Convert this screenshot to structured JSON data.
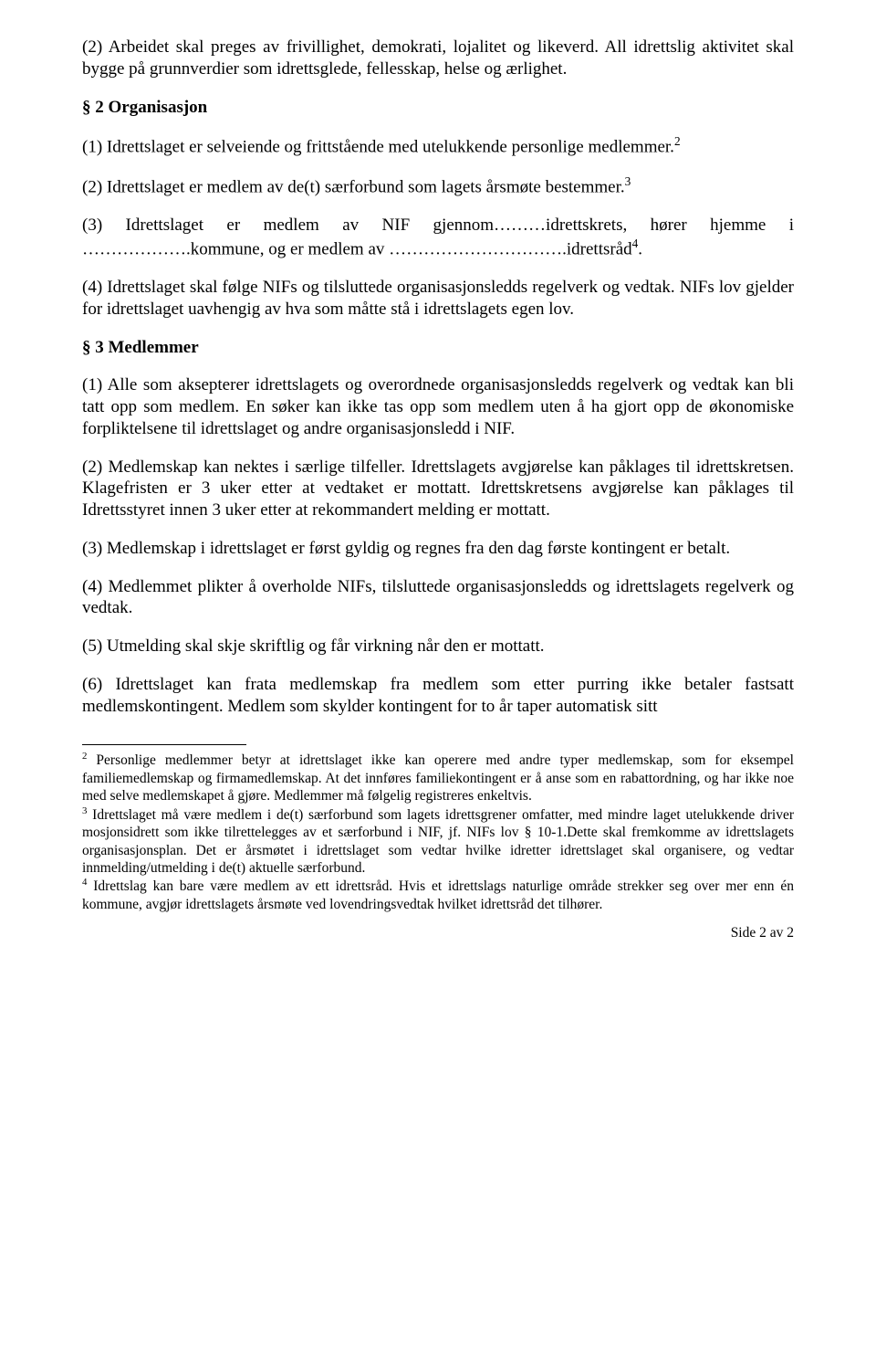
{
  "p1": "(2) Arbeidet skal preges av frivillighet, demokrati, lojalitet og likeverd. All idrettslig aktivitet skal bygge på grunnverdier som idrettsglede, fellesskap, helse og ærlighet.",
  "h1": "§ 2 Organisasjon",
  "p2a": "(1) Idrettslaget er selveiende og frittstående med utelukkende personlige medlemmer.",
  "p2b": "(2) Idrettslaget er medlem av de(t) særforbund som lagets årsmøte bestemmer.",
  "p2c_a": "(3)  Idrettslaget  er  medlem  av  NIF  gjennom………idrettskrets,  hører  hjemme  i ……………….kommune, og er medlem av ………………………….idrettsråd",
  "p2c_b": ".",
  "p2d": "(4) Idrettslaget skal følge NIFs og tilsluttede organisasjonsledds regelverk og vedtak. NIFs lov gjelder for idrettslaget uavhengig av hva som måtte stå i idrettslagets egen lov.",
  "h2": "§ 3 Medlemmer",
  "p3a": "(1) Alle som aksepterer idrettslagets og overordnede organisasjonsledds regelverk og vedtak kan bli tatt opp som medlem. En søker kan ikke tas opp som medlem uten å ha gjort opp de økonomiske forpliktelsene til idrettslaget og andre organisasjonsledd i NIF.",
  "p3b": "(2) Medlemskap kan nektes i særlige tilfeller. Idrettslagets avgjørelse kan påklages til idrettskretsen. Klagefristen er 3 uker etter at vedtaket er mottatt. Idrettskretsens avgjørelse kan påklages til Idrettsstyret innen 3 uker etter at rekommandert melding er mottatt.",
  "p3c": "(3) Medlemskap i idrettslaget er først gyldig og regnes fra den dag første kontingent er betalt.",
  "p3d": "(4) Medlemmet plikter å overholde NIFs, tilsluttede organisasjonsledds og idrettslagets regelverk og vedtak.",
  "p3e": "(5) Utmelding skal skje skriftlig og får virkning når den er mottatt.",
  "p3f": "(6) Idrettslaget kan frata medlemskap fra medlem som etter purring ikke betaler fastsatt medlemskontingent. Medlem som skylder kontingent for to år taper automatisk sitt",
  "fn2": " Personlige medlemmer betyr at idrettslaget ikke kan operere med andre typer medlemskap, som for eksempel familiemedlemskap og firmamedlemskap. At det innføres familiekontingent er å anse som en rabattordning, og har ikke noe med selve medlemskapet å gjøre. Medlemmer må følgelig registreres enkeltvis.",
  "fn3": " Idrettslaget må være medlem i de(t) særforbund som lagets idrettsgrener omfatter, med mindre laget utelukkende driver mosjonsidrett som ikke tilrettelegges av et særforbund i NIF, jf. NIFs lov § 10-1.Dette skal fremkomme av idrettslagets organisasjonsplan. Det er årsmøtet i idrettslaget som vedtar hvilke idretter idrettslaget skal organisere, og vedtar innmelding/utmelding i de(t) aktuelle særforbund.",
  "fn4": " Idrettslag kan bare være medlem av ett idrettsråd. Hvis et idrettslags naturlige område strekker seg over mer enn én kommune, avgjør idrettslagets årsmøte ved lovendringsvedtak hvilket idrettsråd det tilhører.",
  "sup2": "2",
  "sup3": "3",
  "sup4": "4",
  "pagenum": "Side 2 av 2"
}
